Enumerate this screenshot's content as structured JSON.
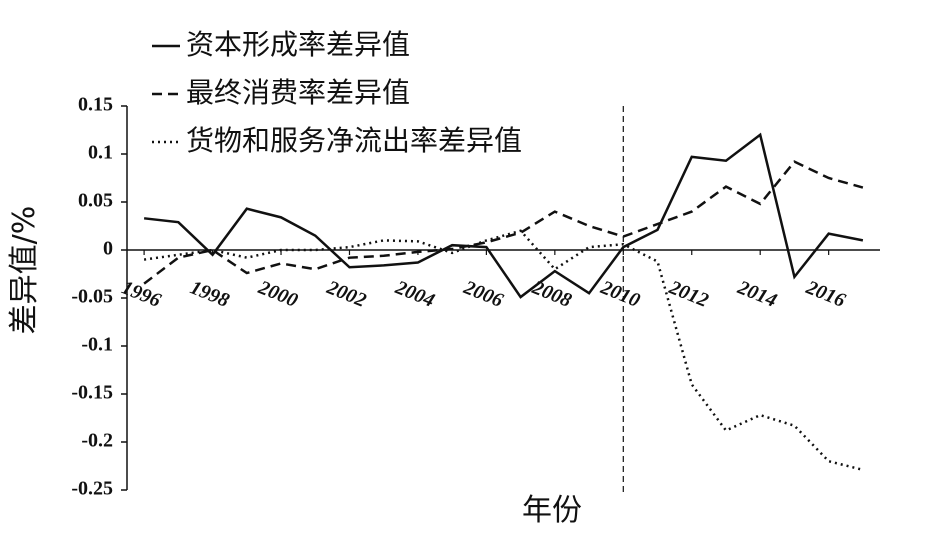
{
  "chart_data": {
    "type": "line",
    "x_label": "年份",
    "y_label": "差异值/%",
    "x": [
      1996,
      1997,
      1998,
      1999,
      2000,
      2001,
      2002,
      2003,
      2004,
      2005,
      2006,
      2007,
      2008,
      2009,
      2010,
      2011,
      2012,
      2013,
      2014,
      2015,
      2016,
      2017
    ],
    "series": [
      {
        "name": "资本形成率差异值",
        "color": "#111111",
        "style": "solid",
        "values": [
          0.033,
          0.029,
          -0.005,
          0.043,
          0.034,
          0.015,
          -0.018,
          -0.016,
          -0.013,
          0.005,
          0.003,
          -0.049,
          -0.022,
          -0.045,
          0.003,
          0.021,
          0.097,
          0.093,
          0.12,
          -0.028,
          0.017,
          0.01
        ]
      },
      {
        "name": "最终消费率差异值",
        "color": "#111111",
        "style": "dashed",
        "values": [
          -0.035,
          -0.008,
          0,
          -0.024,
          -0.014,
          -0.02,
          -0.008,
          -0.006,
          -0.002,
          0.001,
          0.008,
          0.018,
          0.04,
          0.025,
          0.014,
          0.027,
          0.04,
          0.066,
          0.048,
          0.092,
          0.075,
          0.065
        ]
      },
      {
        "name": "货物和服务净流出率差异值",
        "color": "#111111",
        "style": "dotted",
        "values": [
          -0.01,
          -0.005,
          0,
          -0.008,
          0,
          0,
          0.003,
          0.01,
          0.009,
          -0.003,
          0.01,
          0.02,
          -0.02,
          0.003,
          0.006,
          -0.012,
          -0.14,
          -0.188,
          -0.172,
          -0.183,
          -0.22,
          -0.229
        ]
      }
    ],
    "xlim": [
      1995.5,
      2017.5
    ],
    "xticks": [
      1996,
      1998,
      2000,
      2002,
      2004,
      2006,
      2008,
      2010,
      2012,
      2014,
      2016
    ],
    "ylim": [
      -0.25,
      0.15
    ],
    "yticks": [
      0.15,
      0.1,
      0.05,
      0,
      -0.05,
      -0.1,
      -0.15,
      -0.2,
      -0.25
    ],
    "vline": 2010,
    "legend": "top-left",
    "grid": false
  }
}
